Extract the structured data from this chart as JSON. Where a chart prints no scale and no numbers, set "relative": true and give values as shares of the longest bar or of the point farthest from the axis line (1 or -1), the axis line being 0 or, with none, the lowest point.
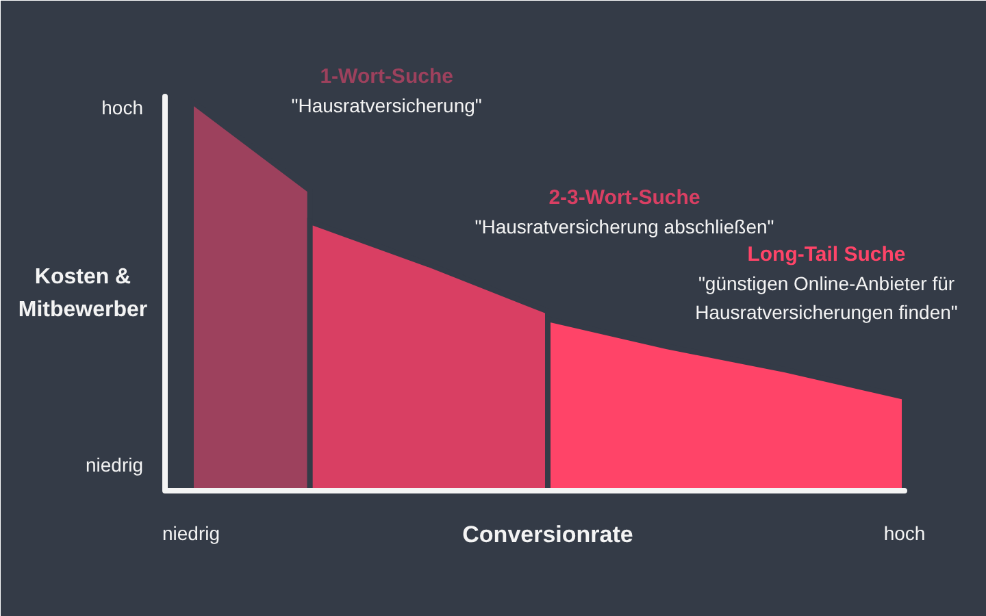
{
  "chart_data": {
    "type": "area",
    "relative": true,
    "xlabel": "Conversionrate",
    "ylabel": "Kosten & Mitbewerber",
    "categories": [
      "niedrig",
      null,
      null,
      null,
      null,
      null,
      "hoch"
    ],
    "series": [
      {
        "name": "1-Wort-Suche",
        "color": "#9d415d",
        "values": [
          1,
          0.77,
          null,
          null,
          null,
          null,
          null
        ]
      },
      {
        "name": "2-3-Wort-Suche",
        "color": "#d93f63",
        "values": [
          null,
          0.69,
          0.58,
          0.46,
          null,
          null,
          null
        ]
      },
      {
        "name": "Long-Tail Suche",
        "color": "#ff4468",
        "values": [
          null,
          null,
          null,
          0.44,
          0.37,
          0.31,
          0.24
        ]
      }
    ],
    "annotations": [
      "\"Hausratversicherung\"",
      "\"Hausratversicherung abschließen\"",
      "\"günstigen Online-Anbieter für Hausratversicherungen finden\"",
      "hoch",
      "niedrig"
    ]
  }
}
